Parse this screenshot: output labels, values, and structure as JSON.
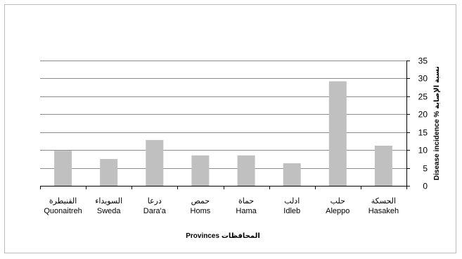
{
  "chart_data": {
    "type": "bar",
    "categories": [
      {
        "ar": "القنيطرة",
        "en": "Quonaitreh"
      },
      {
        "ar": "السويداء",
        "en": "Sweda"
      },
      {
        "ar": "درعا",
        "en": "Dara'a"
      },
      {
        "ar": "حمص",
        "en": "Homs"
      },
      {
        "ar": "حماة",
        "en": "Hama"
      },
      {
        "ar": "ادلب",
        "en": "Idleb"
      },
      {
        "ar": "حلب",
        "en": "Aleppo"
      },
      {
        "ar": "الحسكة",
        "en": "Hasakeh"
      }
    ],
    "values": [
      9.8,
      7.5,
      12.8,
      8.5,
      8.5,
      6.3,
      29.2,
      11.2
    ],
    "xlabel": "Provinces  المحافظات",
    "ylabel": "Disease incidence %  نسبة الإصابة",
    "ylim": [
      0,
      35
    ],
    "yticks": [
      0,
      5,
      10,
      15,
      20,
      25,
      30,
      35
    ],
    "y_axis_side": "right",
    "grid": true,
    "legend": "none",
    "bar_color": "#c0c0c0",
    "grid_color": "#8c8c8c"
  }
}
